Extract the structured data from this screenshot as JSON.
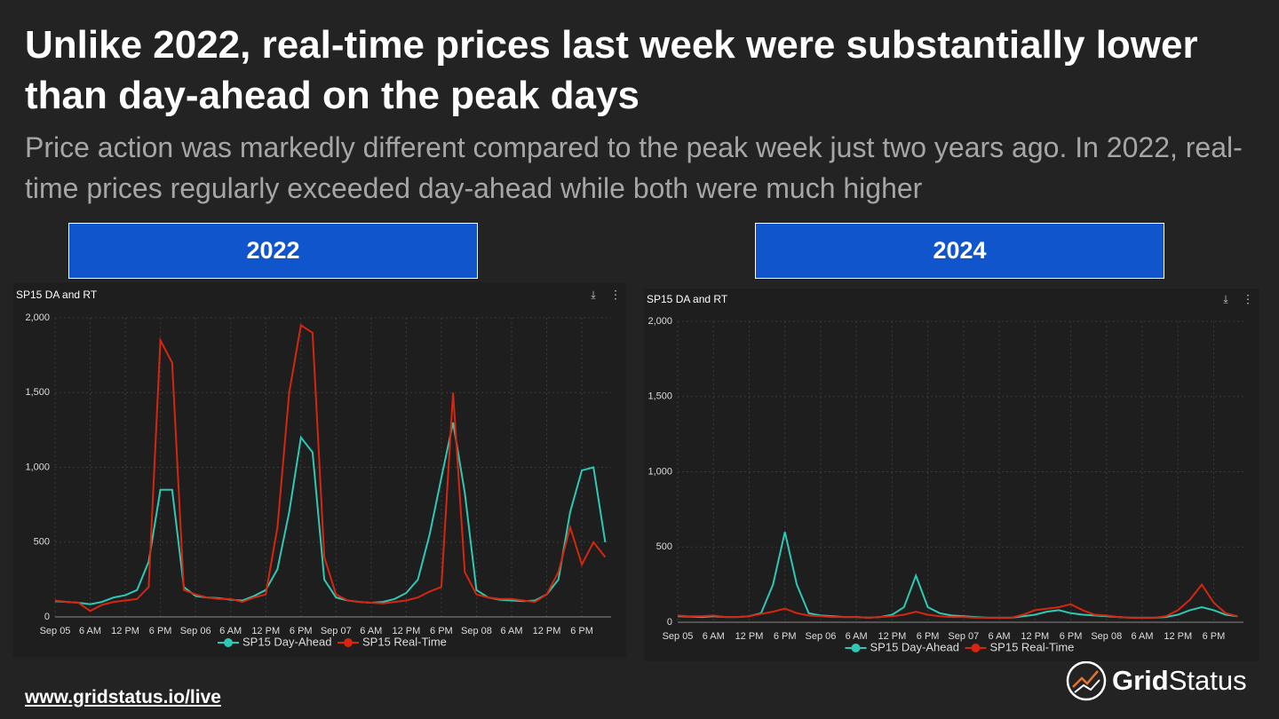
{
  "header": {
    "title": "Unlike 2022, real-time prices last week were substantially lower than day-ahead on the peak days",
    "subtitle": "Price action was markedly different compared to the peak week just two years ago. In 2022, real-time prices regularly exceeded day-ahead while both were much higher"
  },
  "panels": [
    "2022",
    "2024"
  ],
  "footer": {
    "link": "www.gridstatus.io/live"
  },
  "logo": {
    "bold": "Grid",
    "regular": "Status"
  },
  "chart_data": [
    {
      "type": "line",
      "title": "SP15 DA and RT",
      "categories": [
        "Sep 05",
        null,
        null,
        "6 AM",
        null,
        null,
        "12 PM",
        null,
        null,
        "6 PM",
        null,
        null,
        "Sep 06",
        null,
        null,
        "6 AM",
        null,
        null,
        "12 PM",
        null,
        null,
        "6 PM",
        null,
        null,
        "Sep 07",
        null,
        null,
        "6 AM",
        null,
        null,
        "12 PM",
        null,
        null,
        "6 PM",
        null,
        null,
        "Sep 08",
        null,
        null,
        "6 AM",
        null,
        null,
        "12 PM",
        null,
        null,
        "6 PM",
        null,
        null
      ],
      "ylim": [
        0,
        2000
      ],
      "yticks": [
        0,
        500,
        {
          "value": 1000,
          "label": "1,000"
        },
        {
          "value": 1500,
          "label": "1,500"
        },
        {
          "value": 2000,
          "label": "2,000"
        }
      ],
      "grid": true,
      "series": [
        {
          "name": "SP15 Day-Ahead",
          "color": "#2ec9b4",
          "values": [
            105,
            100,
            95,
            85,
            100,
            130,
            145,
            180,
            370,
            850,
            850,
            200,
            140,
            130,
            125,
            115,
            110,
            140,
            180,
            320,
            700,
            1200,
            1100,
            250,
            130,
            110,
            100,
            95,
            100,
            120,
            160,
            250,
            550,
            930,
            1300,
            830,
            180,
            130,
            115,
            110,
            105,
            110,
            150,
            250,
            700,
            980,
            1000,
            500
          ]
        },
        {
          "name": "SP15 Real-Time",
          "color": "#d7260f",
          "values": [
            110,
            100,
            95,
            40,
            80,
            100,
            110,
            120,
            200,
            1850,
            1700,
            180,
            150,
            130,
            120,
            120,
            100,
            130,
            150,
            600,
            1500,
            1950,
            1900,
            400,
            150,
            110,
            100,
            95,
            90,
            100,
            110,
            130,
            170,
            200,
            1500,
            300,
            150,
            130,
            120,
            120,
            110,
            100,
            150,
            300,
            600,
            350,
            500,
            400
          ]
        }
      ]
    },
    {
      "type": "line",
      "title": "SP15 DA and RT",
      "categories": [
        "Sep 05",
        null,
        null,
        "6 AM",
        null,
        null,
        "12 PM",
        null,
        null,
        "6 PM",
        null,
        null,
        "Sep 06",
        null,
        null,
        "6 AM",
        null,
        null,
        "12 PM",
        null,
        null,
        "6 PM",
        null,
        null,
        "Sep 07",
        null,
        null,
        "6 AM",
        null,
        null,
        "12 PM",
        null,
        null,
        "6 PM",
        null,
        null,
        "Sep 08",
        null,
        null,
        "6 AM",
        null,
        null,
        "12 PM",
        null,
        null,
        "6 PM",
        null,
        null
      ],
      "ylim": [
        0,
        2000
      ],
      "yticks": [
        0,
        500,
        {
          "value": 1000,
          "label": "1,000"
        },
        {
          "value": 1500,
          "label": "1,500"
        },
        {
          "value": 2000,
          "label": "2,000"
        }
      ],
      "grid": true,
      "series": [
        {
          "name": "SP15 Day-Ahead",
          "color": "#2ec9b4",
          "values": [
            40,
            38,
            35,
            40,
            35,
            35,
            40,
            60,
            250,
            600,
            250,
            60,
            45,
            40,
            35,
            35,
            30,
            35,
            50,
            100,
            310,
            100,
            60,
            45,
            40,
            35,
            30,
            30,
            30,
            40,
            50,
            70,
            80,
            60,
            50,
            45,
            40,
            35,
            30,
            30,
            30,
            35,
            50,
            80,
            100,
            80,
            50,
            40
          ]
        },
        {
          "name": "SP15 Real-Time",
          "color": "#d7260f",
          "values": [
            45,
            40,
            40,
            45,
            35,
            35,
            40,
            55,
            70,
            90,
            60,
            45,
            40,
            35,
            35,
            35,
            30,
            35,
            40,
            50,
            70,
            50,
            40,
            35,
            35,
            30,
            30,
            30,
            30,
            50,
            80,
            90,
            100,
            120,
            80,
            50,
            45,
            35,
            30,
            30,
            30,
            40,
            80,
            150,
            250,
            130,
            60,
            40
          ]
        }
      ]
    }
  ]
}
